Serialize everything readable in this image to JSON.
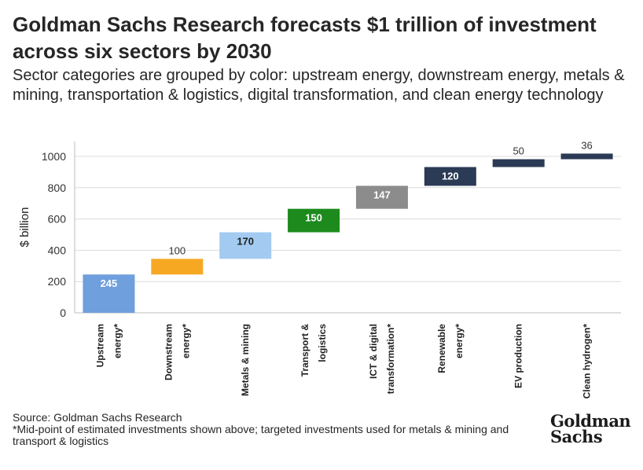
{
  "header": {
    "title": "Goldman Sachs Research forecasts $1 trillion of investment across six sectors by 2030",
    "subtitle": "Sector categories are grouped by color: upstream energy, downstream energy, metals & mining, transportation & logistics, digital transformation, and clean energy technology"
  },
  "footer": {
    "source": "Source: Goldman Sachs Research",
    "note": "*Mid-point of estimated investments shown above; targeted investments used for metals & mining and transport & logistics"
  },
  "logo": {
    "line1": "Goldman",
    "line2": "Sachs"
  },
  "chart_data": {
    "type": "bar",
    "subtype": "waterfall",
    "ylabel": "$ billion",
    "xlabel": "",
    "ylim": [
      0,
      1100
    ],
    "yticks": [
      0,
      200,
      400,
      600,
      800,
      1000
    ],
    "grid": true,
    "categories": [
      [
        "Upstream",
        "energy*"
      ],
      [
        "Downstream",
        "energy*"
      ],
      [
        "Metals & mining"
      ],
      [
        "Transport &",
        "logistics"
      ],
      [
        "ICT & digital",
        "transformation*"
      ],
      [
        "Renewable",
        "energy*"
      ],
      [
        "EV production"
      ],
      [
        "Clean hydrogen*"
      ]
    ],
    "values": [
      245,
      100,
      170,
      150,
      147,
      120,
      50,
      36
    ],
    "value_labels": [
      "245",
      "100",
      "170",
      "150",
      "147",
      "120",
      "50",
      "36"
    ],
    "colors": {
      "upstream": "#6f9fdc",
      "downstream": "#f7a823",
      "metals": "#a3cbf1",
      "transport": "#1d8a1d",
      "digital": "#8c8c8c",
      "clean": "#2b3a55"
    },
    "bar_colors": [
      "#6f9fdc",
      "#f7a823",
      "#a3cbf1",
      "#1d8a1d",
      "#8c8c8c",
      "#2b3a55",
      "#2b3a55",
      "#2b3a55"
    ],
    "label_inside": [
      true,
      false,
      true,
      true,
      true,
      true,
      false,
      false
    ],
    "label_color": [
      "#ffffff",
      "#333333",
      "#1f1f1f",
      "#ffffff",
      "#ffffff",
      "#ffffff",
      "#333333",
      "#333333"
    ]
  }
}
